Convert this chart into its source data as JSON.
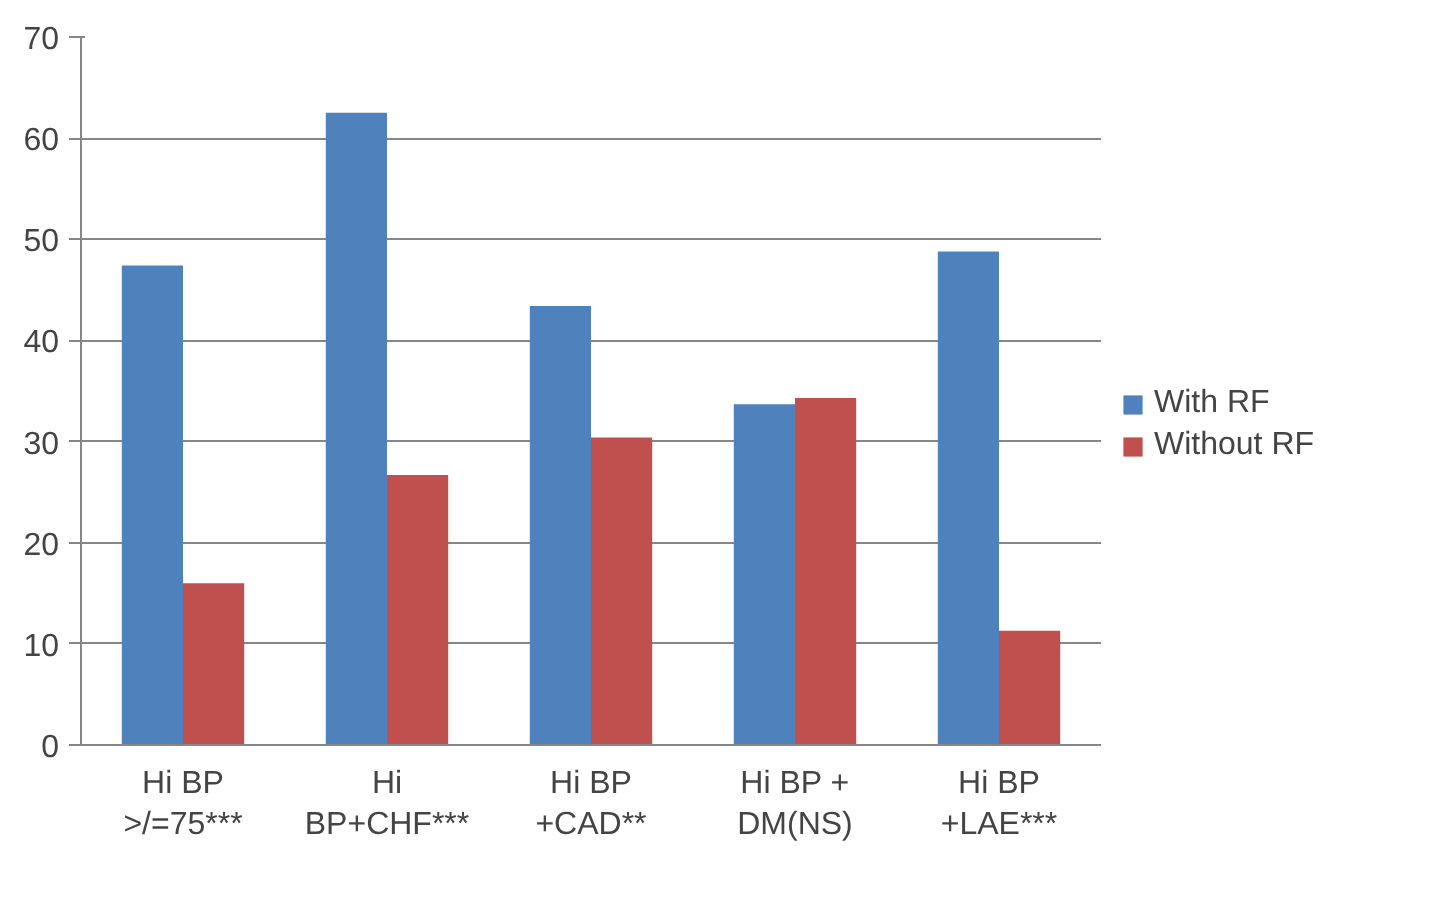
{
  "chart_data": {
    "type": "bar",
    "categories": [
      "Hi BP\n>/=75***",
      "Hi\nBP+CHF***",
      "Hi BP\n+CAD**",
      "Hi BP +\nDM(NS)",
      "Hi BP\n+LAE***"
    ],
    "series": [
      {
        "name": "With RF",
        "color": "#4f81bd",
        "values": [
          47.4,
          62.5,
          43.4,
          33.7,
          48.8
        ]
      },
      {
        "name": "Without RF",
        "color": "#c0504d",
        "values": [
          16.0,
          26.7,
          30.4,
          34.3,
          11.3
        ]
      }
    ],
    "ylim": [
      0,
      70
    ],
    "yticks": [
      0,
      10,
      20,
      30,
      40,
      50,
      60,
      70
    ],
    "grid": "y",
    "legend": "right"
  }
}
